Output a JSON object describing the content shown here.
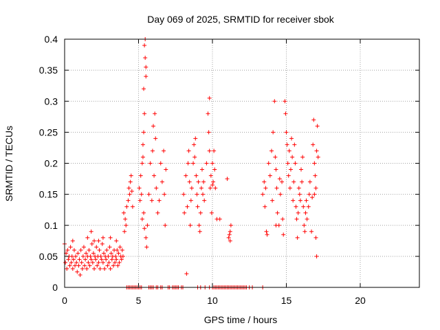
{
  "chart_data": {
    "type": "scatter",
    "title": "Day 069 of 2025, SRMTID for receiver sbok",
    "xlabel": "GPS time / hours",
    "ylabel": "SRMTID / TECUs",
    "xlim": [
      0,
      24
    ],
    "ylim": [
      0,
      0.4
    ],
    "xticks": [
      0,
      5,
      10,
      15,
      20
    ],
    "xtick_labels": [
      "0",
      "5",
      "10",
      "15",
      "20"
    ],
    "yticks": [
      0,
      0.05,
      0.1,
      0.15,
      0.2,
      0.25,
      0.3,
      0.35,
      0.4
    ],
    "ytick_labels": [
      "0",
      "0.05",
      "0.1",
      "0.15",
      "0.2",
      "0.25",
      "0.3",
      "0.35",
      "0.4"
    ],
    "grid": true,
    "marker": "+",
    "series": [
      {
        "color": "#ff0000",
        "points": [
          [
            0.0,
            0.07
          ],
          [
            0.05,
            0.04
          ],
          [
            0.1,
            0.055
          ],
          [
            0.15,
            0.03
          ],
          [
            0.2,
            0.06
          ],
          [
            0.25,
            0.045
          ],
          [
            0.3,
            0.05
          ],
          [
            0.35,
            0.035
          ],
          [
            0.4,
            0.065
          ],
          [
            0.45,
            0.04
          ],
          [
            0.5,
            0.05
          ],
          [
            0.55,
            0.03
          ],
          [
            0.6,
            0.045
          ],
          [
            0.65,
            0.06
          ],
          [
            0.7,
            0.035
          ],
          [
            0.75,
            0.05
          ],
          [
            0.8,
            0.04
          ],
          [
            0.85,
            0.025
          ],
          [
            0.9,
            0.055
          ],
          [
            0.95,
            0.035
          ],
          [
            1.0,
            0.045
          ],
          [
            1.05,
            0.02
          ],
          [
            1.1,
            0.06
          ],
          [
            1.15,
            0.04
          ],
          [
            1.2,
            0.03
          ],
          [
            1.25,
            0.05
          ],
          [
            1.3,
            0.065
          ],
          [
            1.35,
            0.035
          ],
          [
            1.4,
            0.045
          ],
          [
            1.45,
            0.055
          ],
          [
            1.5,
            0.03
          ],
          [
            1.55,
            0.05
          ],
          [
            1.6,
            0.04
          ],
          [
            1.65,
            0.06
          ],
          [
            1.7,
            0.035
          ],
          [
            1.75,
            0.05
          ],
          [
            1.8,
            0.045
          ],
          [
            1.85,
            0.07
          ],
          [
            1.9,
            0.04
          ],
          [
            1.95,
            0.055
          ],
          [
            2.0,
            0.03
          ],
          [
            2.05,
            0.05
          ],
          [
            2.1,
            0.045
          ],
          [
            2.15,
            0.065
          ],
          [
            2.2,
            0.035
          ],
          [
            2.25,
            0.05
          ],
          [
            2.3,
            0.04
          ],
          [
            2.35,
            0.06
          ],
          [
            2.4,
            0.03
          ],
          [
            2.45,
            0.05
          ],
          [
            2.5,
            0.045
          ],
          [
            2.55,
            0.07
          ],
          [
            2.6,
            0.04
          ],
          [
            2.65,
            0.055
          ],
          [
            2.7,
            0.03
          ],
          [
            2.75,
            0.05
          ],
          [
            2.8,
            0.045
          ],
          [
            2.85,
            0.06
          ],
          [
            2.9,
            0.035
          ],
          [
            2.95,
            0.05
          ],
          [
            3.0,
            0.04
          ],
          [
            3.05,
            0.065
          ],
          [
            3.1,
            0.03
          ],
          [
            3.15,
            0.055
          ],
          [
            3.2,
            0.045
          ],
          [
            3.25,
            0.05
          ],
          [
            3.3,
            0.035
          ],
          [
            3.35,
            0.06
          ],
          [
            3.4,
            0.04
          ],
          [
            3.45,
            0.05
          ],
          [
            3.5,
            0.045
          ],
          [
            3.55,
            0.06
          ],
          [
            3.6,
            0.035
          ],
          [
            3.65,
            0.055
          ],
          [
            3.7,
            0.04
          ],
          [
            3.75,
            0.065
          ],
          [
            3.8,
            0.05
          ],
          [
            3.85,
            0.045
          ],
          [
            3.9,
            0.06
          ],
          [
            3.95,
            0.05
          ],
          [
            0.55,
            0.075
          ],
          [
            1.55,
            0.08
          ],
          [
            2.0,
            0.075
          ],
          [
            2.6,
            0.08
          ],
          [
            1.8,
            0.09
          ],
          [
            2.3,
            0.075
          ],
          [
            3.1,
            0.08
          ],
          [
            3.5,
            0.075
          ],
          [
            4.0,
            0.12
          ],
          [
            4.05,
            0.09
          ],
          [
            4.1,
            0.11
          ],
          [
            4.15,
            0.1
          ],
          [
            4.2,
            0.13
          ],
          [
            4.3,
            0.14
          ],
          [
            4.35,
            0.16
          ],
          [
            4.4,
            0.15
          ],
          [
            4.45,
            0.17
          ],
          [
            4.5,
            0.18
          ],
          [
            4.55,
            0.155
          ],
          [
            4.6,
            0.13
          ],
          [
            5.05,
            0.16
          ],
          [
            5.1,
            0.14
          ],
          [
            5.15,
            0.18
          ],
          [
            5.2,
            0.15
          ],
          [
            5.25,
            0.2
          ],
          [
            5.3,
            0.23
          ],
          [
            5.35,
            0.25
          ],
          [
            5.4,
            0.39
          ],
          [
            5.45,
            0.4
          ],
          [
            5.5,
            0.355
          ],
          [
            5.45,
            0.37
          ],
          [
            5.5,
            0.34
          ],
          [
            5.35,
            0.32
          ],
          [
            5.4,
            0.28
          ],
          [
            5.3,
            0.21
          ],
          [
            5.35,
            0.12
          ],
          [
            5.25,
            0.11
          ],
          [
            5.4,
            0.095
          ],
          [
            5.5,
            0.08
          ],
          [
            5.55,
            0.065
          ],
          [
            5.6,
            0.1
          ],
          [
            5.7,
            0.15
          ],
          [
            5.8,
            0.2
          ],
          [
            5.9,
            0.14
          ],
          [
            5.95,
            0.22
          ],
          [
            6.0,
            0.26
          ],
          [
            6.05,
            0.18
          ],
          [
            6.1,
            0.28
          ],
          [
            6.15,
            0.24
          ],
          [
            6.2,
            0.16
          ],
          [
            6.3,
            0.12
          ],
          [
            6.4,
            0.14
          ],
          [
            6.5,
            0.2
          ],
          [
            6.6,
            0.17
          ],
          [
            6.7,
            0.22
          ],
          [
            6.75,
            0.15
          ],
          [
            6.8,
            0.1
          ],
          [
            6.85,
            0.19
          ],
          [
            8.05,
            0.15
          ],
          [
            8.1,
            0.12
          ],
          [
            8.2,
            0.18
          ],
          [
            8.3,
            0.13
          ],
          [
            8.35,
            0.2
          ],
          [
            8.4,
            0.22
          ],
          [
            8.45,
            0.17
          ],
          [
            8.5,
            0.1
          ],
          [
            8.55,
            0.14
          ],
          [
            8.6,
            0.16
          ],
          [
            8.7,
            0.2
          ],
          [
            8.75,
            0.23
          ],
          [
            8.8,
            0.21
          ],
          [
            8.85,
            0.24
          ],
          [
            8.9,
            0.18
          ],
          [
            8.95,
            0.15
          ],
          [
            9.0,
            0.13
          ],
          [
            9.05,
            0.17
          ],
          [
            9.1,
            0.1
          ],
          [
            9.15,
            0.09
          ],
          [
            9.2,
            0.12
          ],
          [
            9.25,
            0.16
          ],
          [
            9.3,
            0.19
          ],
          [
            9.35,
            0.15
          ],
          [
            9.4,
            0.17
          ],
          [
            9.45,
            0.14
          ],
          [
            9.6,
            0.2
          ],
          [
            9.7,
            0.28
          ],
          [
            9.75,
            0.25
          ],
          [
            9.8,
            0.22
          ],
          [
            9.85,
            0.16
          ],
          [
            9.9,
            0.18
          ],
          [
            9.95,
            0.12
          ],
          [
            10.0,
            0.2
          ],
          [
            10.05,
            0.17
          ],
          [
            10.1,
            0.22
          ],
          [
            10.15,
            0.19
          ],
          [
            10.2,
            0.16
          ],
          [
            10.3,
            0.11
          ],
          [
            9.8,
            0.305
          ],
          [
            8.25,
            0.022
          ],
          [
            10.0,
            0.165
          ],
          [
            10.5,
            0.11
          ],
          [
            11.0,
            0.175
          ],
          [
            11.1,
            0.08
          ],
          [
            11.2,
            0.09
          ],
          [
            11.25,
            0.1
          ],
          [
            11.15,
            0.085
          ],
          [
            11.2,
            0.075
          ],
          [
            13.4,
            0.15
          ],
          [
            13.5,
            0.17
          ],
          [
            13.55,
            0.13
          ],
          [
            13.6,
            0.16
          ],
          [
            13.65,
            0.09
          ],
          [
            13.7,
            0.085
          ],
          [
            13.8,
            0.2
          ],
          [
            13.9,
            0.18
          ],
          [
            14.0,
            0.22
          ],
          [
            14.05,
            0.14
          ],
          [
            14.1,
            0.25
          ],
          [
            14.2,
            0.3
          ],
          [
            14.25,
            0.21
          ],
          [
            14.3,
            0.19
          ],
          [
            14.35,
            0.16
          ],
          [
            14.4,
            0.12
          ],
          [
            14.5,
            0.1
          ],
          [
            14.55,
            0.175
          ],
          [
            14.6,
            0.15
          ],
          [
            14.7,
            0.17
          ],
          [
            14.75,
            0.11
          ],
          [
            14.8,
            0.085
          ],
          [
            14.9,
            0.3
          ],
          [
            14.95,
            0.28
          ],
          [
            15.0,
            0.25
          ],
          [
            15.05,
            0.23
          ],
          [
            15.1,
            0.2
          ],
          [
            15.15,
            0.18
          ],
          [
            15.2,
            0.22
          ],
          [
            15.25,
            0.16
          ],
          [
            15.3,
            0.19
          ],
          [
            15.35,
            0.24
          ],
          [
            15.4,
            0.21
          ],
          [
            15.45,
            0.14
          ],
          [
            15.5,
            0.17
          ],
          [
            15.55,
            0.23
          ],
          [
            15.6,
            0.2
          ],
          [
            15.65,
            0.13
          ],
          [
            15.7,
            0.11
          ],
          [
            15.75,
            0.08
          ],
          [
            15.8,
            0.12
          ],
          [
            15.85,
            0.16
          ],
          [
            15.9,
            0.15
          ],
          [
            15.95,
            0.14
          ],
          [
            16.0,
            0.19
          ],
          [
            16.05,
            0.17
          ],
          [
            16.1,
            0.21
          ],
          [
            16.15,
            0.13
          ],
          [
            16.2,
            0.1
          ],
          [
            16.25,
            0.09
          ],
          [
            16.3,
            0.12
          ],
          [
            16.35,
            0.14
          ],
          [
            16.4,
            0.11
          ],
          [
            16.5,
            0.13
          ],
          [
            16.55,
            0.15
          ],
          [
            16.6,
            0.17
          ],
          [
            16.7,
            0.09
          ],
          [
            16.8,
            0.23
          ],
          [
            16.85,
            0.27
          ],
          [
            16.9,
            0.2
          ],
          [
            16.95,
            0.18
          ],
          [
            17.0,
            0.16
          ],
          [
            17.05,
            0.22
          ],
          [
            17.1,
            0.26
          ],
          [
            17.15,
            0.21
          ],
          [
            17.05,
            0.05
          ],
          [
            17.0,
            0.08
          ],
          [
            16.9,
            0.15
          ],
          [
            16.75,
            0.145
          ],
          [
            14.3,
            0.1
          ],
          [
            4.2,
            0.0
          ],
          [
            4.3,
            0.0
          ],
          [
            4.4,
            0.0
          ],
          [
            4.5,
            0.0
          ],
          [
            4.6,
            0.0
          ],
          [
            4.7,
            0.0
          ],
          [
            4.8,
            0.0
          ],
          [
            4.9,
            0.0
          ],
          [
            5.0,
            0.0
          ],
          [
            5.1,
            0.0
          ],
          [
            5.2,
            0.0
          ],
          [
            5.7,
            0.0
          ],
          [
            5.8,
            0.0
          ],
          [
            5.9,
            0.0
          ],
          [
            6.0,
            0.0
          ],
          [
            6.2,
            0.0
          ],
          [
            6.3,
            0.0
          ],
          [
            6.5,
            0.0
          ],
          [
            6.6,
            0.0
          ],
          [
            7.0,
            0.0
          ],
          [
            7.1,
            0.0
          ],
          [
            7.3,
            0.0
          ],
          [
            7.4,
            0.0
          ],
          [
            7.5,
            0.0
          ],
          [
            7.6,
            0.0
          ],
          [
            7.7,
            0.0
          ],
          [
            7.9,
            0.0
          ],
          [
            8.0,
            0.0
          ],
          [
            9.0,
            0.0
          ],
          [
            9.2,
            0.0
          ],
          [
            9.5,
            0.0
          ],
          [
            9.8,
            0.0
          ],
          [
            10.0,
            0.0
          ],
          [
            10.1,
            0.0
          ],
          [
            10.2,
            0.0
          ],
          [
            10.3,
            0.0
          ],
          [
            10.4,
            0.0
          ],
          [
            10.5,
            0.0
          ],
          [
            10.6,
            0.0
          ],
          [
            10.7,
            0.0
          ],
          [
            10.8,
            0.0
          ],
          [
            10.9,
            0.0
          ],
          [
            11.0,
            0.0
          ],
          [
            11.1,
            0.0
          ],
          [
            11.2,
            0.0
          ],
          [
            11.3,
            0.0
          ],
          [
            11.4,
            0.0
          ],
          [
            11.5,
            0.0
          ],
          [
            11.6,
            0.0
          ],
          [
            11.7,
            0.0
          ],
          [
            11.8,
            0.0
          ],
          [
            11.9,
            0.0
          ],
          [
            12.0,
            0.0
          ],
          [
            12.1,
            0.0
          ],
          [
            12.2,
            0.0
          ],
          [
            12.3,
            0.0
          ],
          [
            12.5,
            0.0
          ],
          [
            12.7,
            0.0
          ],
          [
            13.4,
            0.0
          ]
        ]
      }
    ]
  }
}
